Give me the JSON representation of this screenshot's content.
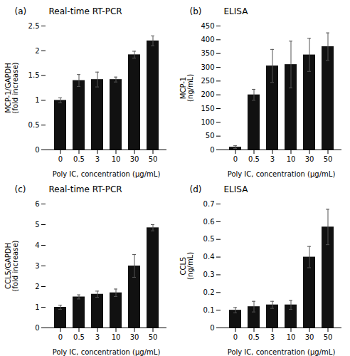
{
  "chart_data": [
    {
      "type": "bar",
      "title": "Real-time RT-PCR",
      "annotations": [
        "(a)"
      ],
      "categories": [
        "0",
        "0.5",
        "3",
        "10",
        "30",
        "50"
      ],
      "values": [
        1.0,
        1.4,
        1.42,
        1.42,
        1.92,
        2.2
      ],
      "errors": [
        0.05,
        0.12,
        0.15,
        0.05,
        0.07,
        0.1
      ],
      "xlabel": "Poly IC, concentration (μg/mL)",
      "ylabel": "MCP-1/GAPDH\n(fold increase)",
      "ylim": [
        0,
        2.5
      ],
      "yticks": [
        0,
        0.5,
        1,
        1.5,
        2,
        2.5
      ],
      "color": "#111111",
      "grid": false
    },
    {
      "type": "bar",
      "title": "ELISA",
      "annotations": [
        "(b)"
      ],
      "categories": [
        "0",
        "0.5",
        "3",
        "10",
        "30",
        "50"
      ],
      "values": [
        10,
        200,
        305,
        310,
        345,
        375
      ],
      "errors": [
        5,
        20,
        60,
        85,
        60,
        50
      ],
      "xlabel": "Poly IC, concentration (μg/mL)",
      "ylabel": "MCP-1\n(ng/mL)",
      "ylim": [
        0,
        450
      ],
      "yticks": [
        0,
        50,
        100,
        150,
        200,
        250,
        300,
        350,
        400,
        450
      ],
      "color": "#111111",
      "grid": false
    },
    {
      "type": "bar",
      "title": "Real-time RT-PCR",
      "annotations": [
        "(c)"
      ],
      "categories": [
        "0",
        "0.5",
        "3",
        "10",
        "30",
        "50"
      ],
      "values": [
        1.0,
        1.5,
        1.63,
        1.7,
        3.0,
        4.85
      ],
      "errors": [
        0.1,
        0.1,
        0.15,
        0.18,
        0.55,
        0.15
      ],
      "xlabel": "Poly IC, concentration (μg/mL)",
      "ylabel": "CCL5/GAPDH\n(fold increase)",
      "ylim": [
        0,
        6
      ],
      "yticks": [
        0,
        1,
        2,
        3,
        4,
        5,
        6
      ],
      "color": "#111111",
      "grid": false
    },
    {
      "type": "bar",
      "title": "ELISA",
      "annotations": [
        "(d)"
      ],
      "categories": [
        "0",
        "0.5",
        "3",
        "10",
        "30",
        "50"
      ],
      "values": [
        0.1,
        0.12,
        0.13,
        0.13,
        0.4,
        0.57
      ],
      "errors": [
        0.015,
        0.03,
        0.02,
        0.025,
        0.06,
        0.1
      ],
      "xlabel": "Poly IC, concentration (μg/mL)",
      "ylabel": "CCL5\n(ng/mL)",
      "ylim": [
        0,
        0.7
      ],
      "yticks": [
        0,
        0.1,
        0.2,
        0.3,
        0.4,
        0.5,
        0.6,
        0.7
      ],
      "color": "#111111",
      "grid": false
    }
  ]
}
